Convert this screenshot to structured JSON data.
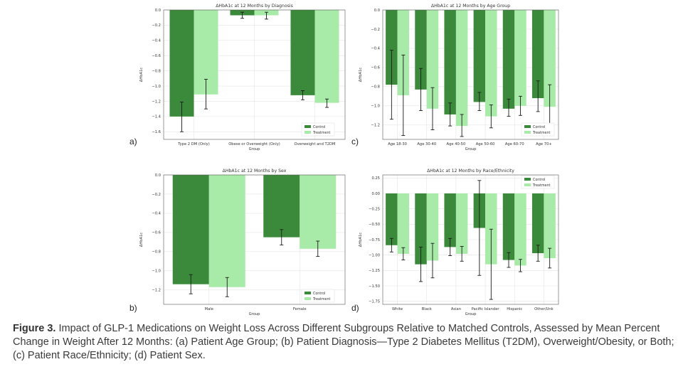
{
  "colors": {
    "control": "#3b8a3b",
    "treatment": "#a8eba8",
    "grid": "#e4e4e4",
    "axis": "#555555",
    "error": "#1a1a1a"
  },
  "caption": {
    "figure_label": "Figure 3.",
    "text": " Impact of GLP-1 Medications on Weight Loss Across Different Subgroups Relative to Matched Controls, Assessed by Mean Percent Change in Weight After 12 Months: (a) Patient Age Group; (b) Patient Diagnosis—Type 2 Diabetes Mellitus (T2DM), Overweight/Obesity, or Both;  (c) Patient Race/Ethnicity; (d) Patient Sex."
  },
  "chart_data": [
    {
      "id": "diagnosis",
      "panel_label": "a)",
      "type": "bar",
      "title": "ΔHbA1c at 12 Months by Diagnosis",
      "xlabel": "Group",
      "ylabel": "ΔHbA1c",
      "ylim": [
        -1.7,
        0.0
      ],
      "yticks": [
        0.0,
        -0.2,
        -0.4,
        -0.6,
        -0.8,
        -1.0,
        -1.2,
        -1.4,
        -1.6
      ],
      "ytick_labels": [
        "0.0",
        "−0.2",
        "−0.4",
        "−0.6",
        "−0.8",
        "−1.0",
        "−1.2",
        "−1.4",
        "−1.6"
      ],
      "categories": [
        "Type 2 DM (Only)",
        "Obese or Overweight (Only)",
        "Overweight and T2DM"
      ],
      "series": [
        {
          "name": "Control",
          "values": [
            -1.4,
            -0.07,
            -1.12
          ],
          "err_low": [
            -1.6,
            -0.11,
            -1.18
          ],
          "err_high": [
            -1.21,
            -0.03,
            -1.06
          ]
        },
        {
          "name": "Treatment",
          "values": [
            -1.11,
            -0.07,
            -1.22
          ],
          "err_low": [
            -1.3,
            -0.12,
            -1.28
          ],
          "err_high": [
            -0.91,
            -0.03,
            -1.17
          ]
        }
      ],
      "legend": "lower-right",
      "grid": true
    },
    {
      "id": "age",
      "panel_label": "c)",
      "type": "bar",
      "title": "ΔHbA1c at 12 Months by Age Group",
      "xlabel": "Group",
      "ylabel": "ΔHbA1c",
      "ylim": [
        -1.35,
        0.0
      ],
      "yticks": [
        0.0,
        -0.2,
        -0.4,
        -0.6,
        -0.8,
        -1.0,
        -1.2
      ],
      "ytick_labels": [
        "0.0",
        "−0.2",
        "−0.4",
        "−0.6",
        "−0.8",
        "−1.0",
        "−1.2"
      ],
      "categories": [
        "Age 18-30",
        "Age 30-40",
        "Age 40-50",
        "Age 50-60",
        "Age 60-70",
        "Age 70+"
      ],
      "series": [
        {
          "name": "Control",
          "values": [
            -0.78,
            -0.83,
            -1.09,
            -0.96,
            -1.03,
            -0.92
          ],
          "err_low": [
            -1.14,
            -1.05,
            -1.21,
            -1.05,
            -1.11,
            -1.06
          ],
          "err_high": [
            -0.42,
            -0.61,
            -0.97,
            -0.86,
            -0.93,
            -0.74
          ]
        },
        {
          "name": "Treatment",
          "values": [
            -0.89,
            -1.03,
            -1.21,
            -1.11,
            -1.0,
            -1.01
          ],
          "err_low": [
            -1.31,
            -1.25,
            -1.32,
            -1.23,
            -1.1,
            -1.22
          ],
          "err_high": [
            -0.47,
            -0.81,
            -1.09,
            -0.99,
            -0.9,
            -0.78
          ]
        }
      ],
      "legend": "lower-right",
      "grid": true
    },
    {
      "id": "sex",
      "panel_label": "b)",
      "type": "bar",
      "title": "ΔHbA1c at 12 Months by Sex",
      "xlabel": "Group",
      "ylabel": "ΔHbA1c",
      "ylim": [
        -1.35,
        0.0
      ],
      "yticks": [
        0.0,
        -0.2,
        -0.4,
        -0.6,
        -0.8,
        -1.0,
        -1.2
      ],
      "ytick_labels": [
        "0.0",
        "−0.2",
        "−0.4",
        "−0.6",
        "−0.8",
        "−1.0",
        "−1.2"
      ],
      "categories": [
        "Male",
        "Female"
      ],
      "series": [
        {
          "name": "Control",
          "values": [
            -1.14,
            -0.65
          ],
          "err_low": [
            -1.24,
            -0.73
          ],
          "err_high": [
            -1.04,
            -0.57
          ]
        },
        {
          "name": "Treatment",
          "values": [
            -1.17,
            -0.77
          ],
          "err_low": [
            -1.27,
            -0.85
          ],
          "err_high": [
            -1.07,
            -0.69
          ]
        }
      ],
      "legend": "lower-right",
      "grid": true
    },
    {
      "id": "race",
      "panel_label": "d)",
      "type": "bar",
      "title": "ΔHbA1c at 12 Months by Race/Ethnicity",
      "xlabel": "Group",
      "ylabel": "ΔHbA1c",
      "ylim": [
        -1.8,
        0.3
      ],
      "yticks": [
        0.25,
        0.0,
        -0.25,
        -0.5,
        -0.75,
        -1.0,
        -1.25,
        -1.5,
        -1.75
      ],
      "ytick_labels": [
        "0.25",
        "0.00",
        "−0.25",
        "−0.50",
        "−0.75",
        "−1.00",
        "−1.25",
        "−1.50",
        "−1.75"
      ],
      "categories": [
        "White",
        "Black",
        "Asian",
        "Pacific Islander",
        "Hispanic",
        "Other/Unk"
      ],
      "series": [
        {
          "name": "Control",
          "values": [
            -0.84,
            -1.15,
            -0.87,
            -0.56,
            -1.08,
            -0.97
          ],
          "err_low": [
            -0.95,
            -1.43,
            -1.01,
            -1.33,
            -1.2,
            -1.1
          ],
          "err_high": [
            -0.73,
            -0.87,
            -0.73,
            0.21,
            -0.96,
            -0.84
          ]
        },
        {
          "name": "Treatment",
          "values": [
            -0.98,
            -1.09,
            -0.98,
            -1.15,
            -1.17,
            -1.05
          ],
          "err_low": [
            -1.08,
            -1.37,
            -1.1,
            -1.72,
            -1.27,
            -1.21
          ],
          "err_high": [
            -0.88,
            -0.81,
            -0.86,
            -0.58,
            -1.07,
            -0.89
          ]
        }
      ],
      "legend": "upper-right",
      "grid": true
    }
  ]
}
